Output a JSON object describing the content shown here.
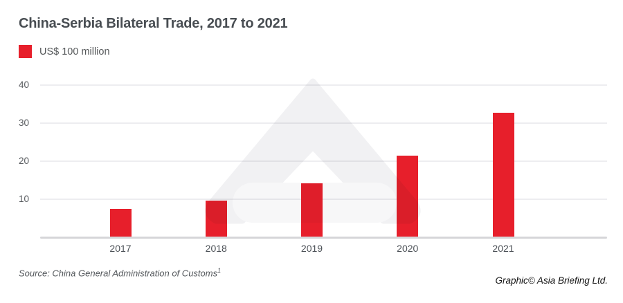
{
  "title": "China-Serbia Bilateral Trade, 2017 to 2021",
  "legend": {
    "label": "US$ 100 million",
    "swatch_color": "#e71f2b"
  },
  "source": {
    "text": "Source: China General Administration of Customs",
    "superscript": "1"
  },
  "credit": "Graphic© Asia Briefing Ltd.",
  "colors": {
    "bar": "#e71f2b",
    "gridline": "#ededf0",
    "axis": "#d6d6d9",
    "title_text": "#484d52",
    "tick_text": "#55585c",
    "watermark": "#f1f1f3",
    "watermark_light": "#f7f7f8"
  },
  "chart_data": {
    "type": "bar",
    "title": "China-Serbia Bilateral Trade, 2017 to 2021",
    "categories": [
      "2017",
      "2018",
      "2019",
      "2020",
      "2021"
    ],
    "values": [
      7.5,
      9.6,
      14.2,
      21.5,
      32.8
    ],
    "series_name": "US$ 100 million",
    "xlabel": "",
    "ylabel": "",
    "ylim": [
      0,
      40
    ],
    "yticks": [
      10,
      20,
      30,
      40
    ],
    "grid": true,
    "legend_position": "top-left",
    "bar_color": "#e71f2b"
  }
}
